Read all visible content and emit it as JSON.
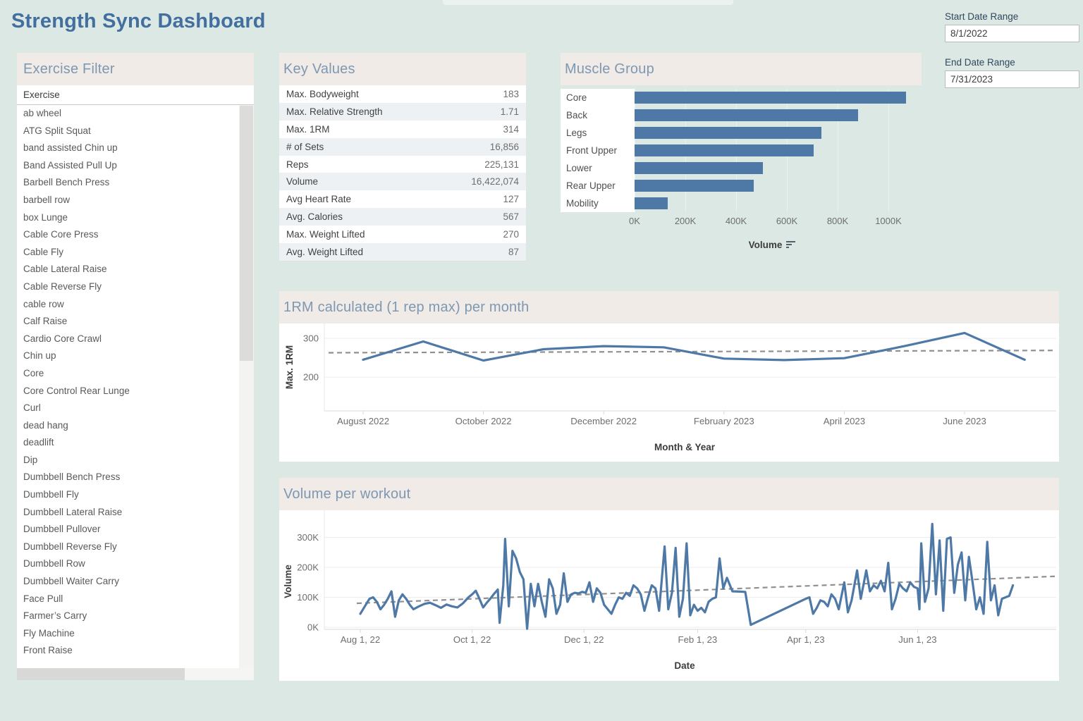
{
  "page": {
    "title": "Strength Sync Dashboard"
  },
  "colors": {
    "page_bg": "#dbe8e3",
    "panel_header_bg": "#f1ebe7",
    "panel_title": "#7d98b2",
    "page_title": "#426f9f",
    "accent_blue": "#4e79a7",
    "trend_gray": "#909090",
    "gridline": "#ededed"
  },
  "filters": {
    "start": {
      "label": "Start Date Range",
      "value": "8/1/2022"
    },
    "end": {
      "label": "End Date Range",
      "value": "7/31/2023"
    }
  },
  "exercise_filter": {
    "title": "Exercise Filter",
    "field_header": "Exercise",
    "items": [
      "ab wheel",
      "ATG Split Squat",
      "band assisted Chin up",
      "Band Assisted Pull Up",
      "Barbell Bench Press",
      "barbell row",
      "box Lunge",
      "Cable Core Press",
      "Cable Fly",
      "Cable Lateral Raise",
      "Cable Reverse Fly",
      "cable row",
      "Calf Raise",
      "Cardio Core Crawl",
      "Chin up",
      "Core",
      "Core Control Rear Lunge",
      "Curl",
      "dead hang",
      "deadlift",
      "Dip",
      "Dumbbell Bench Press",
      "Dumbbell Fly",
      "Dumbbell Lateral Raise",
      "Dumbbell Pullover",
      "Dumbbell Reverse Fly",
      "Dumbbell Row",
      "Dumbbell Waiter Carry",
      "Face Pull",
      "Farmer’s Carry",
      "Fly Machine",
      "Front Raise"
    ]
  },
  "key_values": {
    "title": "Key Values",
    "rows": [
      {
        "label": "Max. Bodyweight",
        "value": "183"
      },
      {
        "label": "Max. Relative Strength",
        "value": "1.71"
      },
      {
        "label": "Max. 1RM",
        "value": "314"
      },
      {
        "label": "# of Sets",
        "value": "16,856"
      },
      {
        "label": "Reps",
        "value": "225,131"
      },
      {
        "label": "Volume",
        "value": "16,422,074"
      },
      {
        "label": "Avg Heart Rate",
        "value": "127"
      },
      {
        "label": "Avg. Calories",
        "value": "567"
      },
      {
        "label": "Max. Weight Lifted",
        "value": "270"
      },
      {
        "label": "Avg. Weight Lifted",
        "value": "87"
      }
    ]
  },
  "chart_data": [
    {
      "id": "muscle_group",
      "type": "bar",
      "orientation": "horizontal",
      "title": "Muscle Group",
      "categories": [
        "Core",
        "Back",
        "Legs",
        "Front Upper",
        "Lower",
        "Rear Upper",
        "Mobility"
      ],
      "values": [
        1070000,
        880000,
        735000,
        705000,
        505000,
        470000,
        130000
      ],
      "xlabel": "Volume",
      "sort": "descending",
      "x_ticks": [
        "0K",
        "200K",
        "400K",
        "600K",
        "800K",
        "1000K"
      ],
      "x_tick_values": [
        0,
        200000,
        400000,
        600000,
        800000,
        1000000
      ],
      "xlim": [
        0,
        1085000
      ],
      "grid": true
    },
    {
      "id": "one_rm_per_month",
      "type": "line",
      "title": "1RM calculated (1 rep max) per month",
      "xlabel": "Month & Year",
      "ylabel": "Max. 1RM",
      "x": [
        "Aug 2022",
        "Sep 2022",
        "Oct 2022",
        "Nov 2022",
        "Dec 2022",
        "Jan 2023",
        "Feb 2023",
        "Mar 2023",
        "Apr 2023",
        "May 2023",
        "Jun 2023",
        "Jul 2023"
      ],
      "values": [
        245,
        292,
        243,
        272,
        280,
        277,
        248,
        244,
        249,
        280,
        314,
        245
      ],
      "y_ticks": [
        200,
        300
      ],
      "ylim": [
        113,
        338
      ],
      "x_axis_tick_labels": [
        "August 2022",
        "October 2022",
        "December 2022",
        "February 2023",
        "April 2023",
        "June 2023"
      ],
      "x_axis_tick_indices": [
        0,
        2,
        4,
        6,
        8,
        10
      ],
      "trend_line": {
        "style": "dashed",
        "start_value": 263,
        "end_value": 269
      },
      "grid": true,
      "legend": "none"
    },
    {
      "id": "volume_per_workout",
      "type": "line",
      "title": "Volume per workout",
      "xlabel": "Date",
      "ylabel": "Volume",
      "y_ticks_k": [
        0,
        100,
        200,
        300
      ],
      "y_tick_labels": [
        "0K",
        "100K",
        "200K",
        "300K"
      ],
      "ylim_k": [
        -8,
        390
      ],
      "x_axis_tick_labels": [
        "Aug 1, 22",
        "Oct 1, 22",
        "Dec 1, 22",
        "Feb 1, 23",
        "Apr 1, 23",
        "Jun 1, 23"
      ],
      "x_axis_tick_days": [
        0,
        61,
        122,
        184,
        243,
        304
      ],
      "x_unit": "days since Aug 1, 2022",
      "trend_line": {
        "style": "dashed",
        "start_value_k": 80,
        "end_value_k": 170
      },
      "points_day_valueK": [
        [
          0,
          45
        ],
        [
          3,
          75
        ],
        [
          5,
          95
        ],
        [
          7,
          100
        ],
        [
          9,
          85
        ],
        [
          11,
          60
        ],
        [
          13,
          75
        ],
        [
          15,
          95
        ],
        [
          17,
          120
        ],
        [
          19,
          35
        ],
        [
          21,
          90
        ],
        [
          23,
          110
        ],
        [
          25,
          95
        ],
        [
          27,
          75
        ],
        [
          29,
          60
        ],
        [
          32,
          70
        ],
        [
          35,
          78
        ],
        [
          38,
          82
        ],
        [
          41,
          74
        ],
        [
          44,
          65
        ],
        [
          47,
          76
        ],
        [
          50,
          70
        ],
        [
          53,
          66
        ],
        [
          56,
          80
        ],
        [
          59,
          100
        ],
        [
          61,
          110
        ],
        [
          63,
          122
        ],
        [
          65,
          95
        ],
        [
          67,
          66
        ],
        [
          69,
          82
        ],
        [
          71,
          96
        ],
        [
          73,
          112
        ],
        [
          75,
          126
        ],
        [
          76,
          15
        ],
        [
          78,
          140
        ],
        [
          79,
          295
        ],
        [
          81,
          70
        ],
        [
          83,
          255
        ],
        [
          85,
          230
        ],
        [
          87,
          185
        ],
        [
          89,
          160
        ],
        [
          91,
          -5
        ],
        [
          93,
          145
        ],
        [
          95,
          70
        ],
        [
          97,
          145
        ],
        [
          99,
          85
        ],
        [
          101,
          35
        ],
        [
          103,
          160
        ],
        [
          105,
          130
        ],
        [
          107,
          45
        ],
        [
          109,
          75
        ],
        [
          111,
          180
        ],
        [
          113,
          85
        ],
        [
          115,
          110
        ],
        [
          117,
          115
        ],
        [
          119,
          113
        ],
        [
          121,
          118
        ],
        [
          123,
          115
        ],
        [
          125,
          150
        ],
        [
          127,
          85
        ],
        [
          129,
          130
        ],
        [
          131,
          115
        ],
        [
          133,
          75
        ],
        [
          135,
          60
        ],
        [
          137,
          45
        ],
        [
          139,
          75
        ],
        [
          141,
          100
        ],
        [
          143,
          95
        ],
        [
          145,
          115
        ],
        [
          147,
          105
        ],
        [
          149,
          140
        ],
        [
          151,
          130
        ],
        [
          153,
          110
        ],
        [
          155,
          55
        ],
        [
          157,
          100
        ],
        [
          159,
          140
        ],
        [
          161,
          130
        ],
        [
          163,
          55
        ],
        [
          166,
          270
        ],
        [
          168,
          60
        ],
        [
          170,
          115
        ],
        [
          172,
          265
        ],
        [
          174,
          35
        ],
        [
          176,
          95
        ],
        [
          178,
          280
        ],
        [
          180,
          40
        ],
        [
          182,
          75
        ],
        [
          184,
          55
        ],
        [
          186,
          65
        ],
        [
          188,
          50
        ],
        [
          190,
          85
        ],
        [
          192,
          95
        ],
        [
          194,
          100
        ],
        [
          196,
          230
        ],
        [
          198,
          130
        ],
        [
          200,
          165
        ],
        [
          203,
          120
        ],
        [
          207,
          119
        ],
        [
          210,
          118
        ],
        [
          213,
          8
        ],
        [
          243,
          95
        ],
        [
          245,
          100
        ],
        [
          247,
          45
        ],
        [
          249,
          65
        ],
        [
          251,
          90
        ],
        [
          253,
          85
        ],
        [
          255,
          70
        ],
        [
          257,
          110
        ],
        [
          259,
          95
        ],
        [
          261,
          60
        ],
        [
          264,
          150
        ],
        [
          266,
          50
        ],
        [
          268,
          90
        ],
        [
          271,
          190
        ],
        [
          273,
          95
        ],
        [
          276,
          190
        ],
        [
          278,
          120
        ],
        [
          280,
          140
        ],
        [
          282,
          130
        ],
        [
          284,
          155
        ],
        [
          286,
          120
        ],
        [
          288,
          215
        ],
        [
          290,
          60
        ],
        [
          292,
          95
        ],
        [
          294,
          145
        ],
        [
          296,
          130
        ],
        [
          298,
          120
        ],
        [
          300,
          150
        ],
        [
          302,
          135
        ],
        [
          304,
          130
        ],
        [
          305,
          60
        ],
        [
          306,
          280
        ],
        [
          308,
          85
        ],
        [
          310,
          130
        ],
        [
          312,
          345
        ],
        [
          314,
          110
        ],
        [
          316,
          290
        ],
        [
          318,
          55
        ],
        [
          320,
          295
        ],
        [
          322,
          300
        ],
        [
          324,
          115
        ],
        [
          326,
          210
        ],
        [
          328,
          250
        ],
        [
          330,
          90
        ],
        [
          332,
          235
        ],
        [
          334,
          150
        ],
        [
          336,
          60
        ],
        [
          338,
          100
        ],
        [
          340,
          45
        ],
        [
          342,
          285
        ],
        [
          344,
          90
        ],
        [
          346,
          140
        ],
        [
          348,
          40
        ],
        [
          350,
          95
        ],
        [
          352,
          100
        ],
        [
          354,
          105
        ],
        [
          356,
          140
        ]
      ],
      "grid": true,
      "legend": "none"
    }
  ]
}
